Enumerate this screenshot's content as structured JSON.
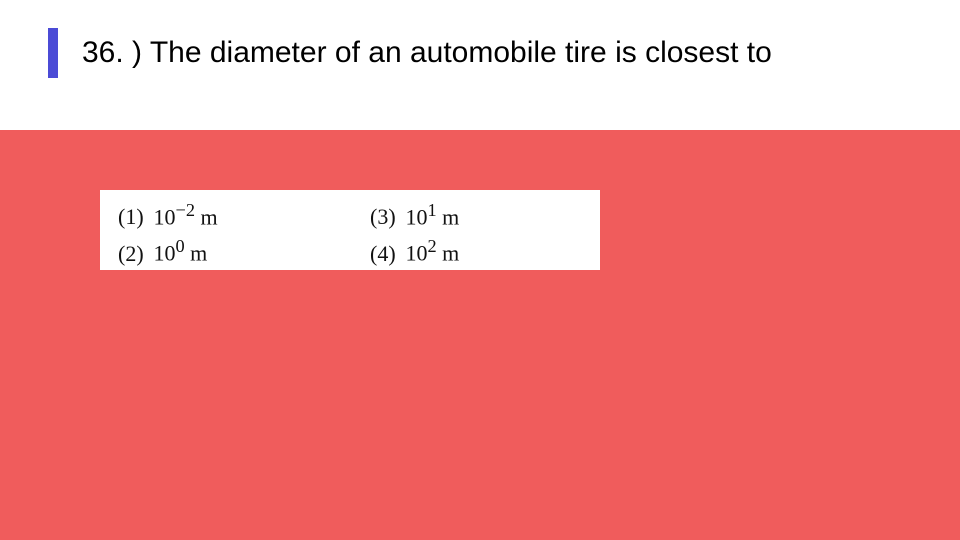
{
  "slide": {
    "background_color": "#f05c5c",
    "header": {
      "accent_color": "#4b4bd6",
      "question_text": "36. ) The diameter of an automobile tire is closest to",
      "question_fontsize": 30,
      "question_color": "#000000",
      "box_bg": "#ffffff"
    },
    "options": {
      "box_bg": "#ffffff",
      "font_family": "Times New Roman",
      "font_size": 22,
      "text_color": "#111111",
      "items": [
        {
          "label": "(1)",
          "base": "10",
          "exp": "−2",
          "unit": "m"
        },
        {
          "label": "(3)",
          "base": "10",
          "exp": "1",
          "unit": "m"
        },
        {
          "label": "(2)",
          "base": "10",
          "exp": "0",
          "unit": "m"
        },
        {
          "label": "(4)",
          "base": "10",
          "exp": "2",
          "unit": "m"
        }
      ]
    }
  }
}
